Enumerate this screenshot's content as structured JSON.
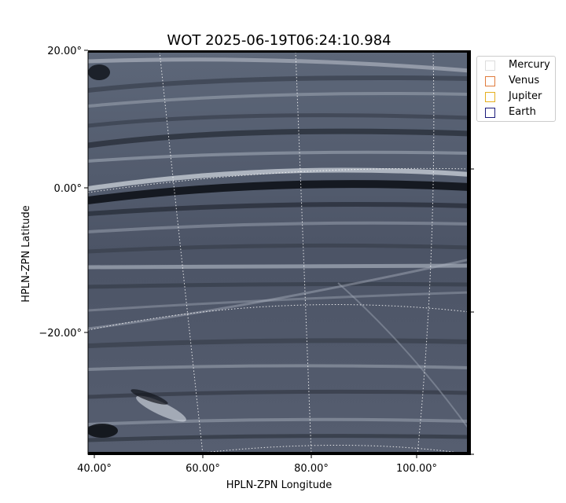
{
  "chart_data": {
    "type": "heatmap",
    "title": "WOT 2025-06-19T06:24:10.984",
    "xlabel": "HPLN-ZPN Longitude",
    "ylabel": "HPLN-ZPN Latitude",
    "x_ticks": [
      "40.00°",
      "60.00°",
      "80.00°",
      "100.00°"
    ],
    "y_ticks": [
      "20.00°",
      "0.00°",
      "−20.00°"
    ],
    "colormap": "grayscale-blue",
    "grid": true,
    "legend_position": "upper-right-outside",
    "legend": [
      {
        "name": "Mercury",
        "color": "#dddddd"
      },
      {
        "name": "Venus",
        "color": "#e07b3c"
      },
      {
        "name": "Jupiter",
        "color": "#e6b020"
      },
      {
        "name": "Earth",
        "color": "#1a1a7a"
      }
    ]
  }
}
